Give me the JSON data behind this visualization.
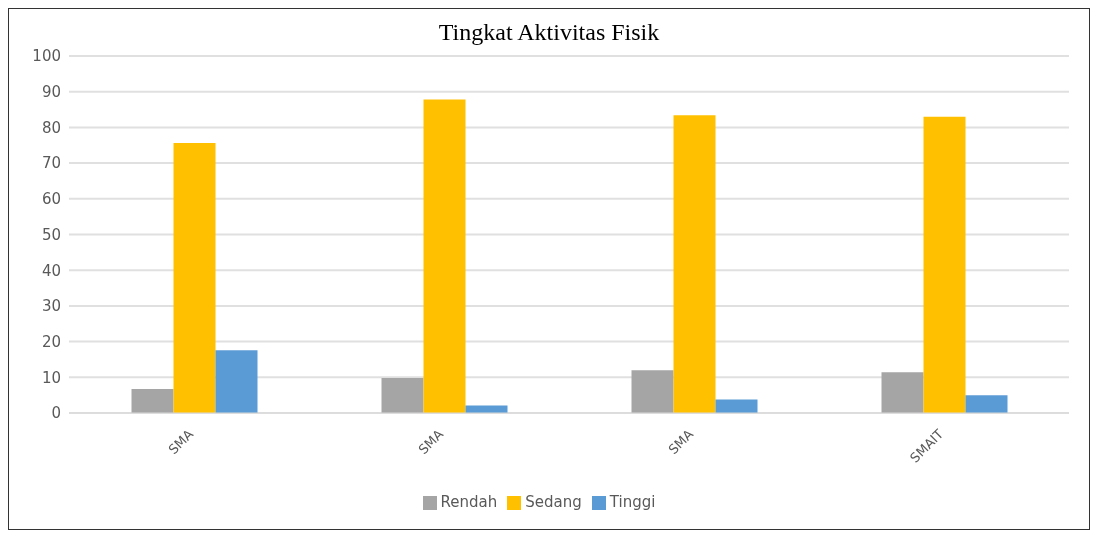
{
  "chart_data": {
    "type": "bar",
    "title": "Tingkat Aktivitas Fisik",
    "categories": [
      "SMA",
      "SMA",
      "SMA",
      "SMAIT"
    ],
    "series": [
      {
        "name": "Rendah",
        "color": "#a5a5a5",
        "values": [
          6.7,
          9.8,
          12,
          11.4
        ]
      },
      {
        "name": "Sedang",
        "color": "#ffc000",
        "values": [
          75.6,
          87.8,
          83.4,
          83
        ]
      },
      {
        "name": "Tinggi",
        "color": "#5b9bd5",
        "values": [
          17.6,
          2.1,
          3.8,
          5
        ]
      }
    ],
    "ylim": [
      0,
      100
    ],
    "yticks": [
      0,
      10,
      20,
      30,
      40,
      50,
      60,
      70,
      80,
      90,
      100
    ],
    "grid": "y",
    "legend": "bottom"
  }
}
